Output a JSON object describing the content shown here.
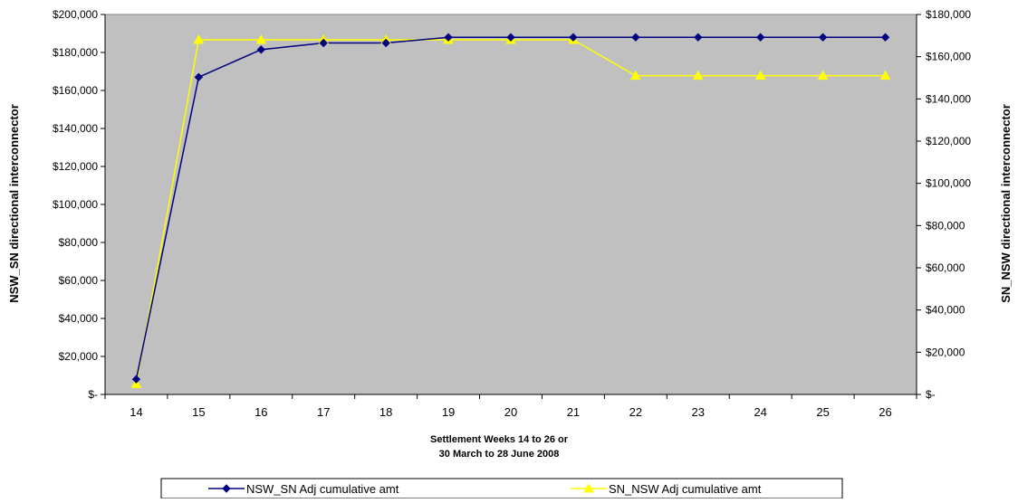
{
  "chart_data": {
    "type": "line",
    "title": "",
    "xlabel_line1": "Settlement Weeks 14 to 26 or",
    "xlabel_line2": "30 March   to 28 June 2008",
    "ylabel_left": "NSW_SN directional interconnector",
    "ylabel_right": "SN_NSW directional interconnector",
    "categories": [
      "14",
      "15",
      "16",
      "17",
      "18",
      "19",
      "20",
      "21",
      "22",
      "23",
      "24",
      "25",
      "26"
    ],
    "y_left": {
      "ylim": [
        0,
        200000
      ],
      "ticks": [
        0,
        20000,
        40000,
        60000,
        80000,
        100000,
        120000,
        140000,
        160000,
        180000,
        200000
      ],
      "tick_labels": [
        "$-",
        "$20,000",
        "$40,000",
        "$60,000",
        "$80,000",
        "$100,000",
        "$120,000",
        "$140,000",
        "$160,000",
        "$180,000",
        "$200,000"
      ]
    },
    "y_right": {
      "ylim": [
        0,
        180000
      ],
      "ticks": [
        0,
        20000,
        40000,
        60000,
        80000,
        100000,
        120000,
        140000,
        160000,
        180000
      ],
      "tick_labels": [
        "$-",
        "$20,000",
        "$40,000",
        "$60,000",
        "$80,000",
        "$100,000",
        "$120,000",
        "$140,000",
        "$160,000",
        "$180,000"
      ]
    },
    "series": [
      {
        "name": "NSW_SN Adj cumulative amt",
        "axis": "left",
        "color": "#000080",
        "marker": "diamond",
        "values": [
          8000,
          167000,
          181500,
          185000,
          185000,
          188000,
          188000,
          188000,
          188000,
          188000,
          188000,
          188000,
          188000
        ]
      },
      {
        "name": "SN_NSW Adj cumulative amt",
        "axis": "right",
        "color": "#FFFF00",
        "marker": "triangle",
        "values": [
          5000,
          168000,
          168000,
          168000,
          168000,
          168000,
          168000,
          168000,
          151000,
          151000,
          151000,
          151000,
          151000
        ]
      }
    ],
    "plot_background": "#C0C0C0",
    "grid": false,
    "legend_position": "bottom"
  }
}
